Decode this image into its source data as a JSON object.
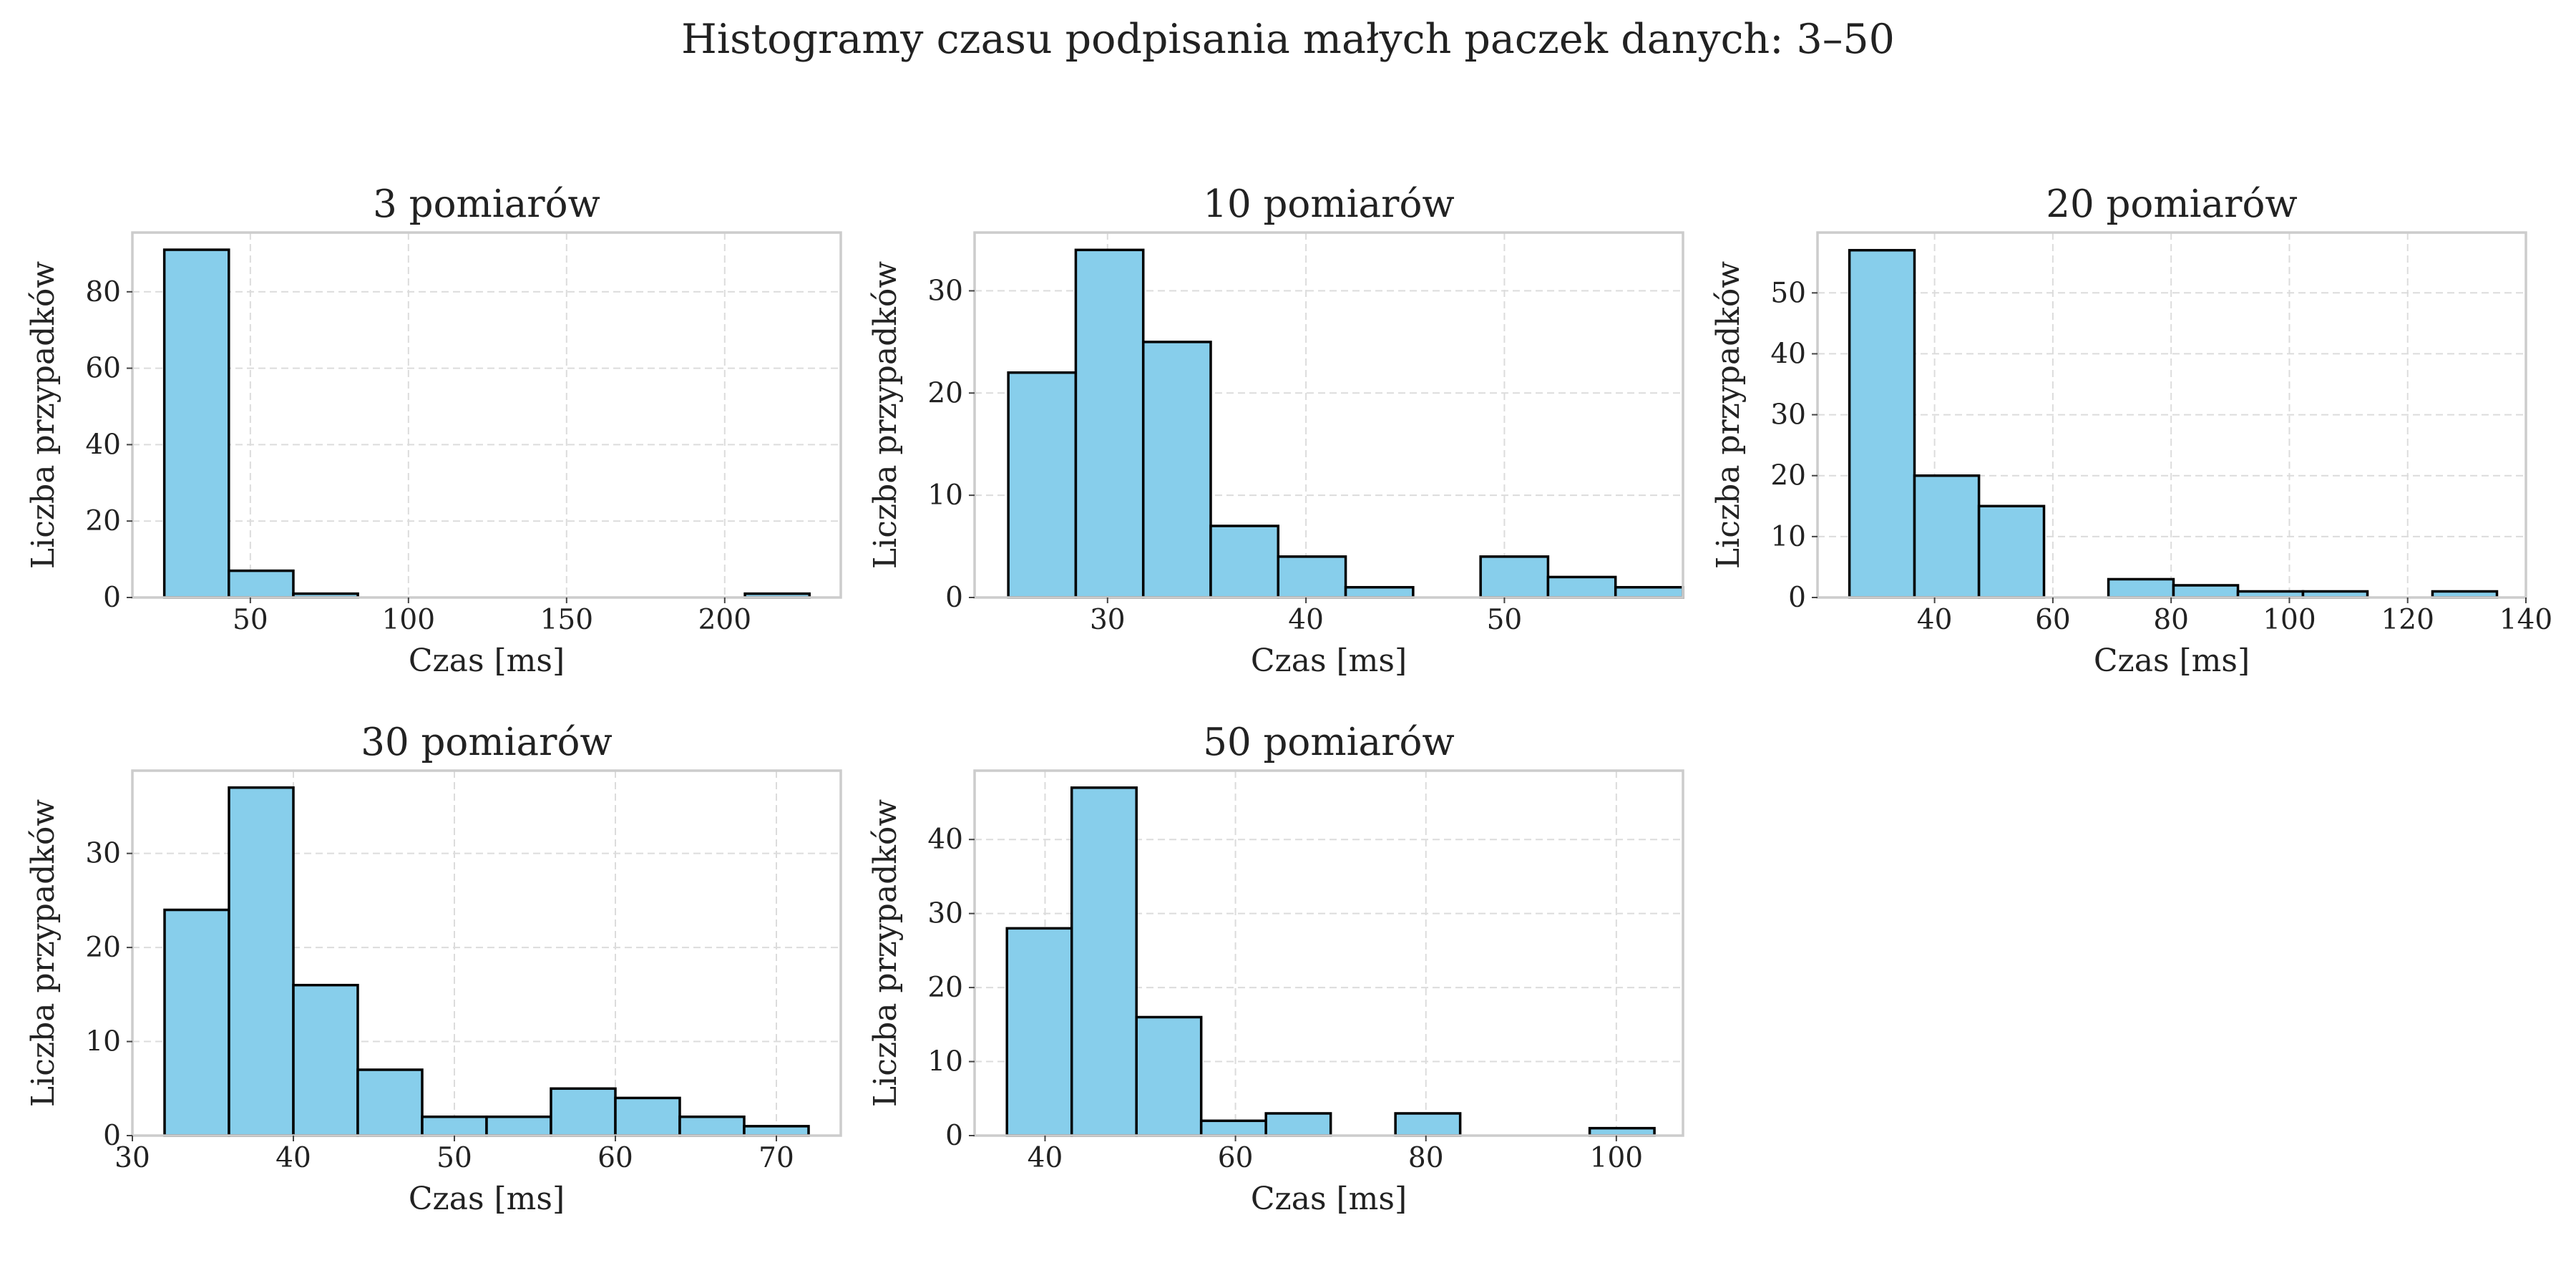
{
  "title": "Histogramy czasu podpisania małych paczek danych: 3–50",
  "colors": {
    "bar_fill": "#87CEEB",
    "bar_edge": "#000000",
    "grid": "#dcdcdc",
    "frame": "#cccccc"
  },
  "chart_data": [
    {
      "type": "bar",
      "title": "3 pomiarów",
      "xlabel": "Czas [ms]",
      "ylabel": "Liczba przypadków",
      "grid": true,
      "xlim": [
        12.7,
        236.7
      ],
      "ylim": [
        0,
        95.5
      ],
      "xticks": [
        50,
        100,
        150,
        200
      ],
      "yticks": [
        0,
        20,
        40,
        60,
        80
      ],
      "bins": [
        22.8,
        43.2,
        63.6,
        84.0,
        104.4,
        124.8,
        145.2,
        165.6,
        186.0,
        206.4,
        226.8
      ],
      "counts": [
        91,
        7,
        1,
        0,
        0,
        0,
        0,
        0,
        0,
        1
      ]
    },
    {
      "type": "bar",
      "title": "10 pomiarów",
      "xlabel": "Czas [ms]",
      "ylabel": "Liczba przypadków",
      "grid": true,
      "xlim": [
        23.3,
        59.0
      ],
      "ylim": [
        0,
        35.7
      ],
      "xticks": [
        30,
        40,
        50
      ],
      "yticks": [
        0,
        10,
        20,
        30
      ],
      "bins": [
        25.0,
        28.4,
        31.8,
        35.2,
        38.6,
        42.0,
        45.4,
        48.8,
        52.2,
        55.6,
        59.0
      ],
      "counts": [
        22,
        34,
        25,
        7,
        4,
        1,
        0,
        4,
        2,
        1
      ]
    },
    {
      "type": "bar",
      "title": "20 pomiarów",
      "xlabel": "Czas [ms]",
      "ylabel": "Liczba przypadków",
      "grid": true,
      "xlim": [
        20.2,
        140.0
      ],
      "ylim": [
        0,
        59.9
      ],
      "xticks": [
        40,
        60,
        80,
        100,
        120,
        140
      ],
      "yticks": [
        0,
        10,
        20,
        30,
        40,
        50
      ],
      "bins": [
        25.6,
        36.6,
        47.5,
        58.5,
        69.4,
        80.4,
        91.3,
        102.3,
        113.2,
        124.2,
        135.1
      ],
      "counts": [
        57,
        20,
        15,
        0,
        3,
        2,
        1,
        1,
        0,
        1
      ]
    },
    {
      "type": "bar",
      "title": "30 pomiarów",
      "xlabel": "Czas [ms]",
      "ylabel": "Liczba przypadków",
      "grid": true,
      "xlim": [
        30.0,
        74.0
      ],
      "ylim": [
        0,
        38.8
      ],
      "xticks": [
        30,
        40,
        50,
        60,
        70
      ],
      "yticks": [
        0,
        10,
        20,
        30
      ],
      "bins": [
        32.0,
        36.0,
        40.0,
        44.0,
        48.0,
        52.0,
        56.0,
        60.0,
        64.0,
        68.0,
        72.0
      ],
      "counts": [
        24,
        37,
        16,
        7,
        2,
        2,
        5,
        4,
        2,
        1
      ]
    },
    {
      "type": "bar",
      "title": "50 pomiarów",
      "xlabel": "Czas [ms]",
      "ylabel": "Liczba przypadków",
      "grid": true,
      "xlim": [
        32.6,
        107.0
      ],
      "ylim": [
        0,
        49.3
      ],
      "xticks": [
        40,
        60,
        80,
        100
      ],
      "yticks": [
        0,
        10,
        20,
        30,
        40
      ],
      "bins": [
        36.0,
        42.8,
        49.6,
        56.4,
        63.2,
        70.0,
        76.8,
        83.6,
        90.4,
        97.2,
        104.0
      ],
      "counts": [
        28,
        47,
        16,
        2,
        3,
        0,
        3,
        0,
        0,
        1
      ]
    }
  ]
}
